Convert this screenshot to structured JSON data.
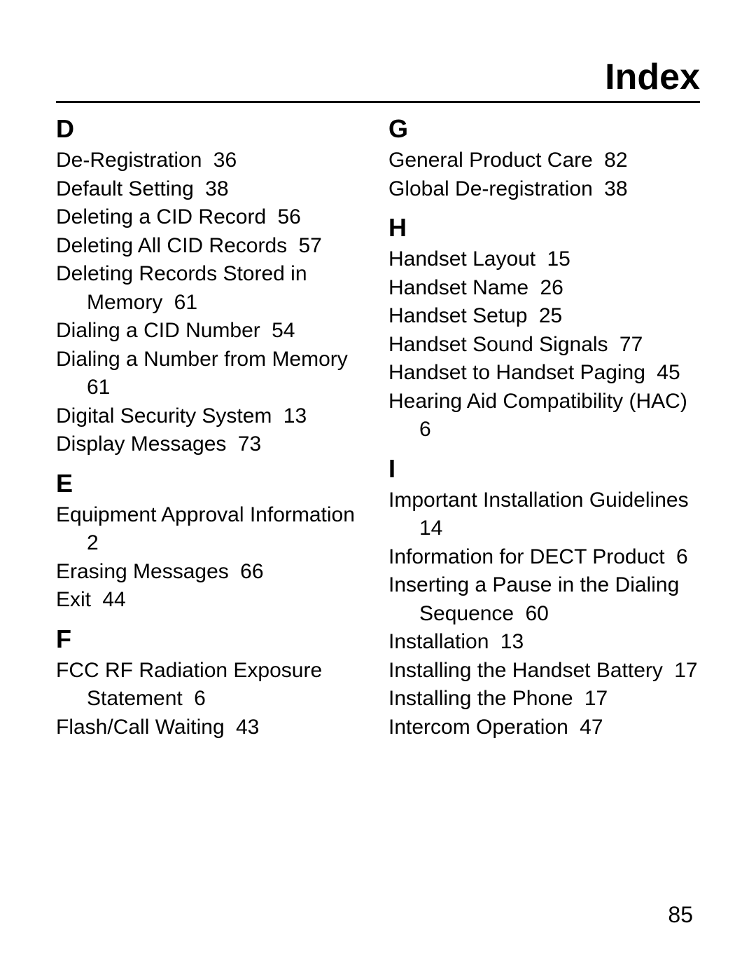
{
  "title": "Index",
  "pageNumber": "85",
  "left": {
    "sections": [
      {
        "letter": "D",
        "entries": [
          {
            "text": "De-Registration",
            "page": "36"
          },
          {
            "text": "Default Setting",
            "page": "38"
          },
          {
            "text": "Deleting a CID Record",
            "page": "56"
          },
          {
            "text": "Deleting All CID Records",
            "page": "57"
          },
          {
            "text": "Deleting Records Stored in Memory",
            "page": "61"
          },
          {
            "text": "Dialing a CID Number",
            "page": "54"
          },
          {
            "text": "Dialing a Number from Memory",
            "page": "61"
          },
          {
            "text": "Digital Security System",
            "page": "13"
          },
          {
            "text": "Display Messages",
            "page": "73"
          }
        ]
      },
      {
        "letter": "E",
        "entries": [
          {
            "text": "Equipment Approval Information",
            "page": "2"
          },
          {
            "text": "Erasing Messages",
            "page": "66"
          },
          {
            "text": "Exit",
            "page": "44"
          }
        ]
      },
      {
        "letter": "F",
        "entries": [
          {
            "text": "FCC RF Radiation Exposure Statement",
            "page": "6"
          },
          {
            "text": "Flash/Call Waiting",
            "page": "43"
          }
        ]
      }
    ]
  },
  "right": {
    "sections": [
      {
        "letter": "G",
        "entries": [
          {
            "text": "General Product Care",
            "page": "82"
          },
          {
            "text": "Global De-registration",
            "page": "38"
          }
        ]
      },
      {
        "letter": "H",
        "entries": [
          {
            "text": "Handset Layout",
            "page": "15"
          },
          {
            "text": "Handset Name",
            "page": "26"
          },
          {
            "text": "Handset Setup",
            "page": "25"
          },
          {
            "text": "Handset Sound Signals",
            "page": "77"
          },
          {
            "text": "Handset to Handset Paging",
            "page": "45"
          },
          {
            "text": "Hearing Aid Compatibility (HAC)",
            "page": "6"
          }
        ]
      },
      {
        "letter": "I",
        "entries": [
          {
            "text": "Important Installation Guidelines",
            "page": "14"
          },
          {
            "text": "Information for DECT Product",
            "page": "6"
          },
          {
            "text": "Inserting a Pause in the Dialing Sequence",
            "page": "60"
          },
          {
            "text": "Installation",
            "page": "13"
          },
          {
            "text": "Installing the Handset Battery",
            "page": "17"
          },
          {
            "text": "Installing the Phone",
            "page": "17"
          },
          {
            "text": "Intercom Operation",
            "page": "47"
          }
        ]
      }
    ]
  }
}
